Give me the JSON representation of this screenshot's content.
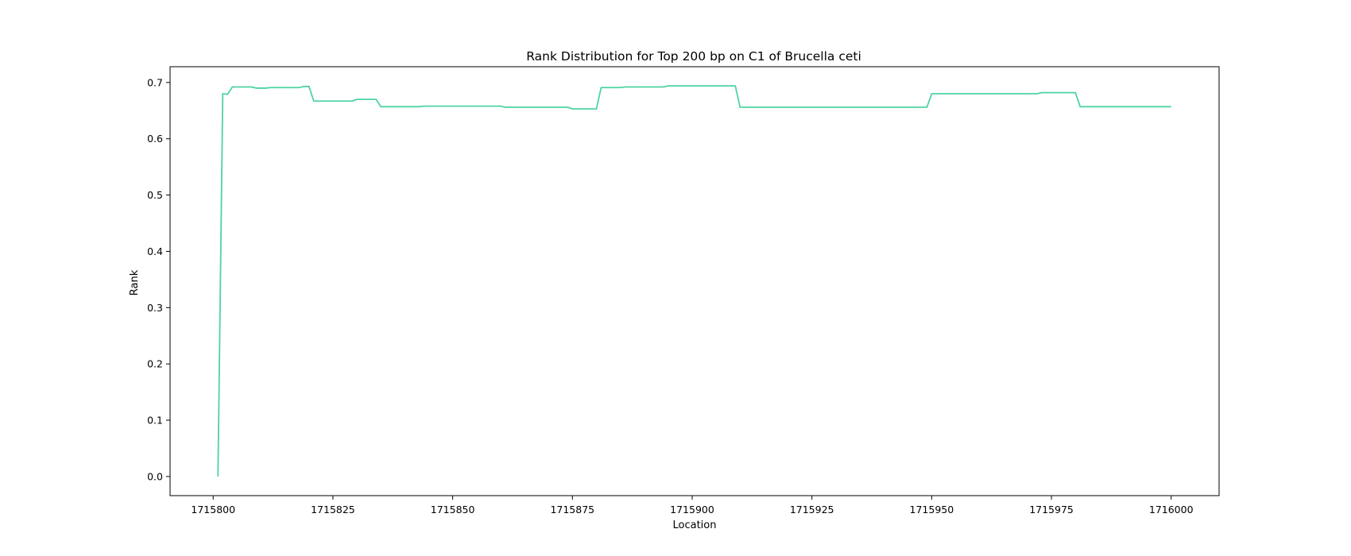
{
  "chart_data": {
    "type": "line",
    "title": "Rank Distribution for Top 200 bp on C1 of Brucella ceti",
    "xlabel": "Location",
    "ylabel": "Rank",
    "xlim": [
      1715791,
      1716010
    ],
    "ylim": [
      -0.034,
      0.728
    ],
    "x_ticks": [
      1715800,
      1715825,
      1715850,
      1715875,
      1715900,
      1715925,
      1715950,
      1715975,
      1716000
    ],
    "y_ticks": [
      0.0,
      0.1,
      0.2,
      0.3,
      0.4,
      0.5,
      0.6,
      0.7
    ],
    "x_tick_labels": [
      "1715800",
      "1715825",
      "1715850",
      "1715875",
      "1715900",
      "1715925",
      "1715950",
      "1715975",
      "1716000"
    ],
    "y_tick_labels": [
      "0.0",
      "0.1",
      "0.2",
      "0.3",
      "0.4",
      "0.5",
      "0.6",
      "0.7"
    ],
    "grid": false,
    "series": [
      {
        "color": "#4dd4a0",
        "points": [
          [
            1715801,
            0.0
          ],
          [
            1715802,
            0.68
          ],
          [
            1715803,
            0.679
          ],
          [
            1715804,
            0.692
          ],
          [
            1715808,
            0.692
          ],
          [
            1715809,
            0.69
          ],
          [
            1715811,
            0.69
          ],
          [
            1715812,
            0.691
          ],
          [
            1715818,
            0.691
          ],
          [
            1715819,
            0.693
          ],
          [
            1715820,
            0.693
          ],
          [
            1715821,
            0.667
          ],
          [
            1715829,
            0.667
          ],
          [
            1715830,
            0.67
          ],
          [
            1715834,
            0.67
          ],
          [
            1715835,
            0.657
          ],
          [
            1715843,
            0.657
          ],
          [
            1715844,
            0.658
          ],
          [
            1715860,
            0.658
          ],
          [
            1715861,
            0.656
          ],
          [
            1715874,
            0.656
          ],
          [
            1715875,
            0.653
          ],
          [
            1715880,
            0.653
          ],
          [
            1715881,
            0.691
          ],
          [
            1715885,
            0.691
          ],
          [
            1715886,
            0.692
          ],
          [
            1715894,
            0.692
          ],
          [
            1715895,
            0.694
          ],
          [
            1715909,
            0.694
          ],
          [
            1715910,
            0.656
          ],
          [
            1715949,
            0.656
          ],
          [
            1715950,
            0.68
          ],
          [
            1715972,
            0.68
          ],
          [
            1715973,
            0.682
          ],
          [
            1715980,
            0.682
          ],
          [
            1715981,
            0.657
          ],
          [
            1716000,
            0.657
          ]
        ]
      }
    ]
  }
}
